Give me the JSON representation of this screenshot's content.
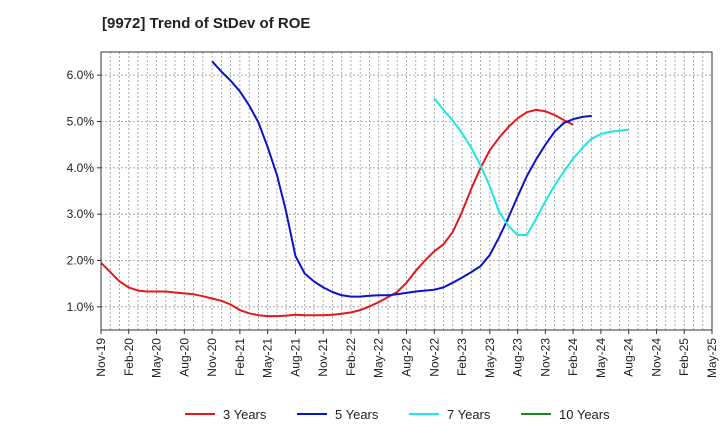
{
  "chart_data": {
    "type": "line",
    "title": "[9972]  Trend of StDev of ROE",
    "xlabel": "",
    "ylabel": "",
    "x_tick_labels": [
      "Nov-19",
      "Feb-20",
      "May-20",
      "Aug-20",
      "Nov-20",
      "Feb-21",
      "May-21",
      "Aug-21",
      "Nov-21",
      "Feb-22",
      "May-22",
      "Aug-22",
      "Nov-22",
      "Feb-23",
      "May-23",
      "Aug-23",
      "Nov-23",
      "Feb-24",
      "May-24",
      "Aug-24",
      "Nov-24",
      "Feb-25",
      "May-25"
    ],
    "y_tick_labels": [
      "1.0%",
      "2.0%",
      "3.0%",
      "4.0%",
      "5.0%",
      "6.0%"
    ],
    "y_ticks": [
      1.0,
      2.0,
      3.0,
      4.0,
      5.0,
      6.0
    ],
    "ylim": [
      0.5,
      6.5
    ],
    "grid": true,
    "legend_position": "bottom",
    "series": [
      {
        "name": "3 Years",
        "color": "#e31a1c",
        "points": [
          [
            0,
            1.95
          ],
          [
            1,
            1.75
          ],
          [
            2,
            1.55
          ],
          [
            3,
            1.42
          ],
          [
            4,
            1.35
          ],
          [
            5,
            1.33
          ],
          [
            6,
            1.33
          ],
          [
            7,
            1.33
          ],
          [
            8,
            1.31
          ],
          [
            9,
            1.29
          ],
          [
            10,
            1.27
          ],
          [
            11,
            1.23
          ],
          [
            12,
            1.18
          ],
          [
            13,
            1.13
          ],
          [
            14,
            1.05
          ],
          [
            15,
            0.93
          ],
          [
            16,
            0.86
          ],
          [
            17,
            0.82
          ],
          [
            18,
            0.8
          ],
          [
            19,
            0.8
          ],
          [
            20,
            0.81
          ],
          [
            21,
            0.83
          ],
          [
            22,
            0.82
          ],
          [
            23,
            0.82
          ],
          [
            24,
            0.82
          ],
          [
            25,
            0.83
          ],
          [
            26,
            0.85
          ],
          [
            27,
            0.88
          ],
          [
            28,
            0.93
          ],
          [
            29,
            1.01
          ],
          [
            30,
            1.1
          ],
          [
            31,
            1.21
          ],
          [
            32,
            1.32
          ],
          [
            33,
            1.52
          ],
          [
            34,
            1.78
          ],
          [
            35,
            2.0
          ],
          [
            36,
            2.2
          ],
          [
            37,
            2.35
          ],
          [
            38,
            2.62
          ],
          [
            39,
            3.05
          ],
          [
            40,
            3.55
          ],
          [
            41,
            4.0
          ],
          [
            42,
            4.38
          ],
          [
            43,
            4.65
          ],
          [
            44,
            4.88
          ],
          [
            45,
            5.07
          ],
          [
            46,
            5.2
          ],
          [
            47,
            5.25
          ],
          [
            48,
            5.22
          ],
          [
            49,
            5.14
          ],
          [
            50,
            5.03
          ],
          [
            51,
            4.93
          ]
        ]
      },
      {
        "name": "5 Years",
        "color": "#0a14c8",
        "points": [
          [
            12,
            6.3
          ],
          [
            13,
            6.08
          ],
          [
            14,
            5.88
          ],
          [
            15,
            5.65
          ],
          [
            16,
            5.35
          ],
          [
            17,
            4.98
          ],
          [
            18,
            4.45
          ],
          [
            19,
            3.85
          ],
          [
            20,
            3.05
          ],
          [
            21,
            2.1
          ],
          [
            22,
            1.72
          ],
          [
            23,
            1.55
          ],
          [
            24,
            1.42
          ],
          [
            25,
            1.32
          ],
          [
            26,
            1.25
          ],
          [
            27,
            1.22
          ],
          [
            28,
            1.22
          ],
          [
            29,
            1.24
          ],
          [
            30,
            1.25
          ],
          [
            31,
            1.25
          ],
          [
            32,
            1.27
          ],
          [
            33,
            1.3
          ],
          [
            34,
            1.33
          ],
          [
            35,
            1.35
          ],
          [
            36,
            1.37
          ],
          [
            37,
            1.42
          ],
          [
            38,
            1.52
          ],
          [
            39,
            1.63
          ],
          [
            40,
            1.75
          ],
          [
            41,
            1.88
          ],
          [
            42,
            2.12
          ],
          [
            43,
            2.5
          ],
          [
            44,
            2.92
          ],
          [
            45,
            3.38
          ],
          [
            46,
            3.82
          ],
          [
            47,
            4.18
          ],
          [
            48,
            4.5
          ],
          [
            49,
            4.78
          ],
          [
            50,
            4.97
          ],
          [
            51,
            5.05
          ],
          [
            52,
            5.1
          ],
          [
            53,
            5.12
          ]
        ]
      },
      {
        "name": "7 Years",
        "color": "#1ee6e6",
        "points": [
          [
            36,
            5.5
          ],
          [
            37,
            5.25
          ],
          [
            38,
            5.02
          ],
          [
            39,
            4.75
          ],
          [
            40,
            4.43
          ],
          [
            41,
            4.05
          ],
          [
            42,
            3.6
          ],
          [
            43,
            3.05
          ],
          [
            44,
            2.75
          ],
          [
            45,
            2.55
          ],
          [
            46,
            2.55
          ],
          [
            47,
            2.9
          ],
          [
            48,
            3.28
          ],
          [
            49,
            3.62
          ],
          [
            50,
            3.92
          ],
          [
            51,
            4.2
          ],
          [
            52,
            4.43
          ],
          [
            53,
            4.63
          ],
          [
            54,
            4.73
          ],
          [
            55,
            4.78
          ],
          [
            56,
            4.8
          ],
          [
            57,
            4.82
          ]
        ]
      },
      {
        "name": "10 Years",
        "color": "#1a8c1a",
        "points": []
      }
    ]
  }
}
